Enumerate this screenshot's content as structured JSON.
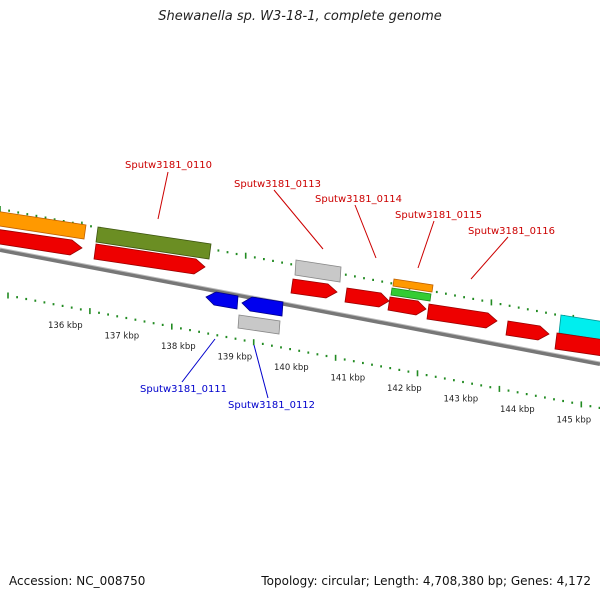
{
  "title": "Shewanella sp. W3-18-1, complete genome",
  "footer": {
    "accession": "Accession: NC_008750",
    "topology": "Topology: circular; Length: 4,708,380 bp; Genes: 4,172"
  },
  "colors": {
    "cds": "#ee0000",
    "gray": "#c8c8c8",
    "blue": "#0000ee",
    "olive": "#6b8e23",
    "orange": "#ff9900",
    "green": "#33cc33",
    "cyan": "#00eeee",
    "ticks": "#228b22",
    "plus_label": "#cc0000",
    "minus_label": "#0000cc",
    "backbone": "#777777"
  },
  "scale": {
    "unit": "kbp",
    "ticks": [
      {
        "label": "136 kbp"
      },
      {
        "label": "137 kbp"
      },
      {
        "label": "138 kbp"
      },
      {
        "label": "139 kbp"
      },
      {
        "label": "140 kbp"
      },
      {
        "label": "141 kbp"
      },
      {
        "label": "142 kbp"
      },
      {
        "label": "143 kbp"
      },
      {
        "label": "144 kbp"
      },
      {
        "label": "145 kbp"
      }
    ]
  },
  "labels": {
    "plus": [
      "Sputw3181_0110",
      "Sputw3181_0113",
      "Sputw3181_0114",
      "Sputw3181_0115",
      "Sputw3181_0116"
    ],
    "minus": [
      "Sputw3181_0111",
      "Sputw3181_0112"
    ]
  }
}
